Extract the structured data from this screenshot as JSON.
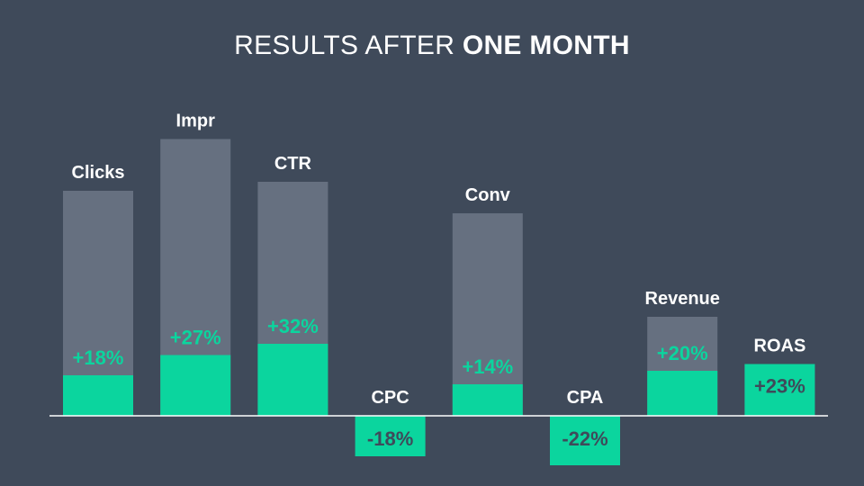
{
  "title": {
    "regular": "RESULTS AFTER ",
    "bold": "ONE MONTH"
  },
  "colors": {
    "background": "#3f4a5a",
    "total_bar": "#667080",
    "change_bar": "#0bd59e",
    "positive_label": "#0bd59e",
    "negative_label": "#3f4a5a",
    "category_label": "#ffffff",
    "baseline": "#ffffff"
  },
  "chart_data": {
    "type": "bar",
    "title": "RESULTS AFTER ONE MONTH",
    "categories": [
      "Clicks",
      "Impr",
      "CTR",
      "CPC",
      "Conv",
      "CPA",
      "Revenue",
      "ROAS"
    ],
    "series": [
      {
        "values": [
          18,
          27,
          32,
          -18,
          14,
          -22,
          20,
          23
        ],
        "labels": [
          "+18%",
          "+27%",
          "+32%",
          "-18%",
          "+14%",
          "-22%",
          "+20%",
          "+23%"
        ]
      }
    ],
    "total_bars": [
      100,
      123,
      104,
      0,
      90,
      0,
      44,
      23
    ],
    "xlabel": "",
    "ylabel": "",
    "grid": false
  }
}
